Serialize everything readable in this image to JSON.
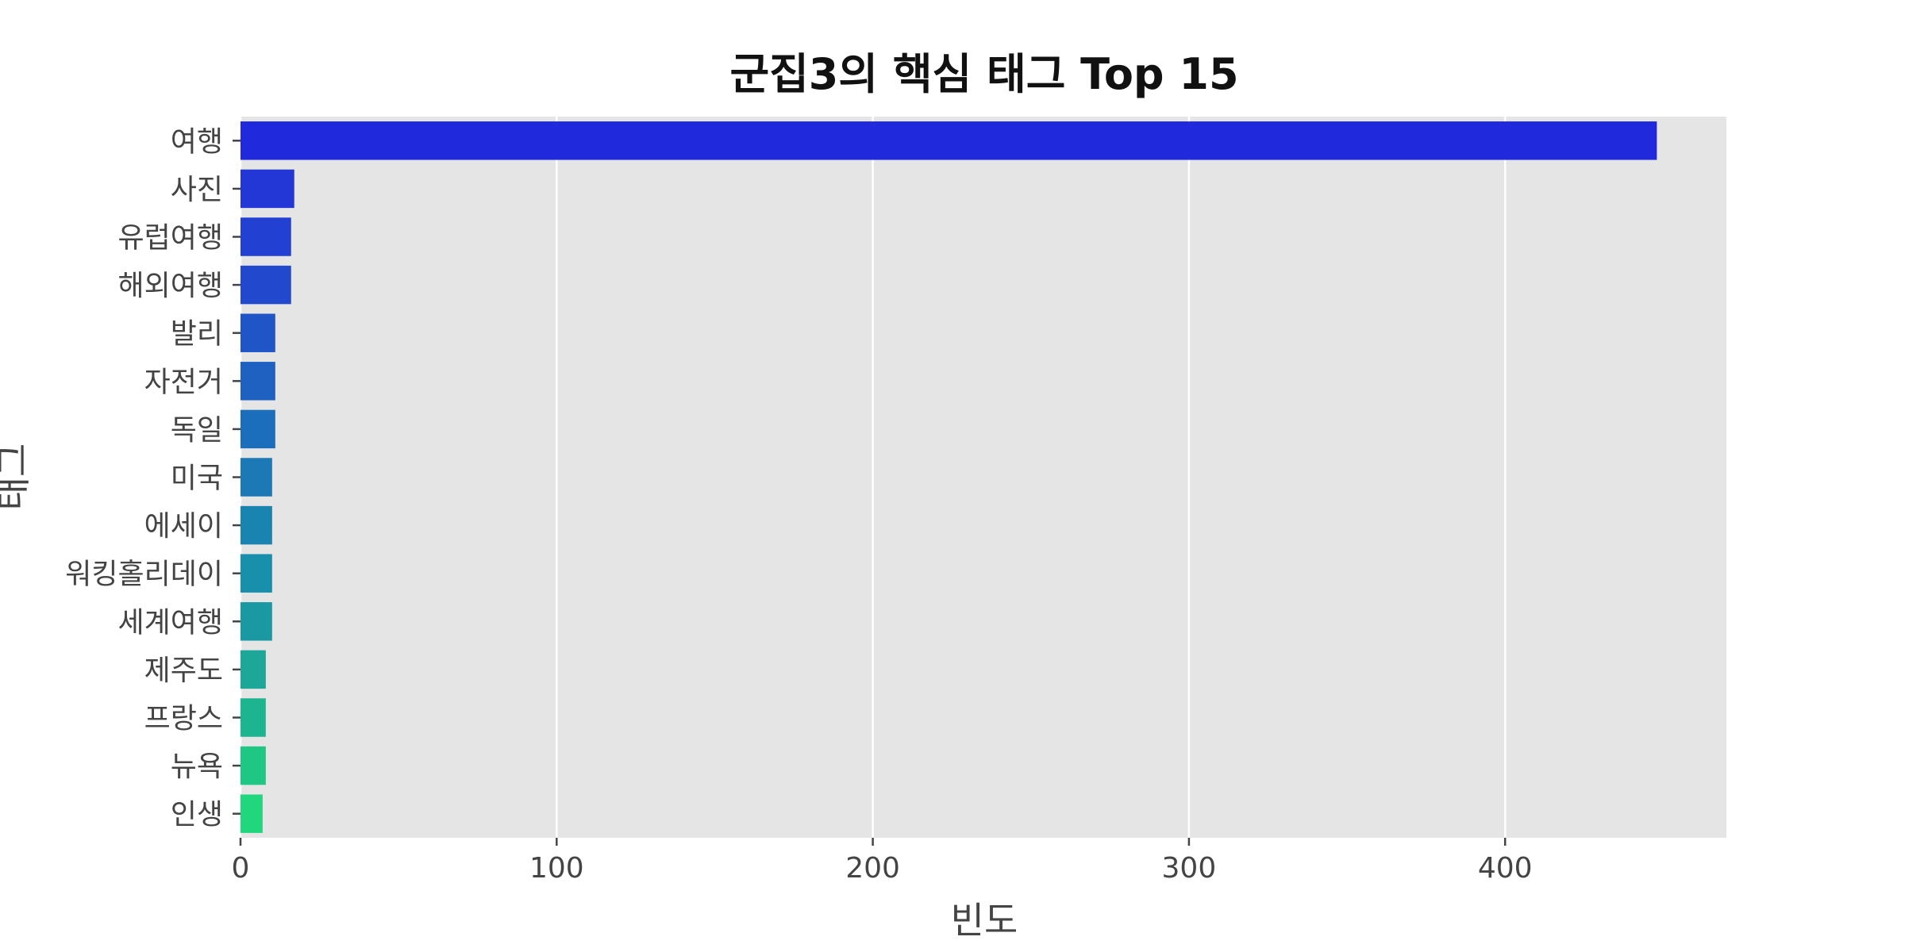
{
  "chart_data": {
    "type": "bar",
    "orientation": "horizontal",
    "title": "군집3의 핵심 태그 Top 15",
    "xlabel": "빈도",
    "ylabel": "태그",
    "xlim": [
      0,
      470
    ],
    "xticks": [
      0,
      100,
      200,
      300,
      400
    ],
    "grid": true,
    "categories": [
      "여행",
      "사진",
      "유럽여행",
      "해외여행",
      "발리",
      "자전거",
      "독일",
      "미국",
      "에세이",
      "워킹홀리데이",
      "세계여행",
      "제주도",
      "프랑스",
      "뉴욕",
      "인생"
    ],
    "values": [
      448,
      17,
      16,
      16,
      11,
      11,
      11,
      10,
      10,
      10,
      10,
      8,
      8,
      8,
      7
    ],
    "colors": [
      "#2129dc",
      "#2237d6",
      "#2240d2",
      "#2249cd",
      "#1f55c6",
      "#1e61c0",
      "#1b6ebb",
      "#1d79b6",
      "#1a84b0",
      "#188fab",
      "#1b99a2",
      "#1ca799",
      "#1db58f",
      "#1fc785",
      "#21d77e"
    ],
    "background_color": "#e5e5e5"
  }
}
